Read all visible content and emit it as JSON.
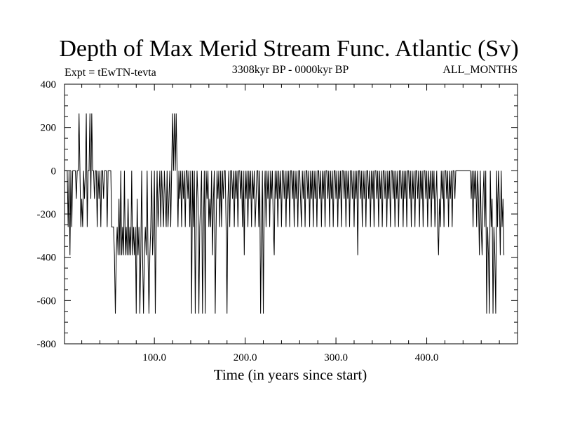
{
  "chart_data": {
    "type": "line",
    "title": "Depth of Max Merid Stream Func. Atlantic (Sv)",
    "subtitle_left": "Expt = tEwTN-tevta",
    "subtitle_center": "3308kyr BP - 0000kyr BP",
    "subtitle_right": "ALL_MONTHS",
    "xlabel": "Time (in years since start)",
    "ylabel": "",
    "xlim": [
      1,
      500
    ],
    "ylim": [
      -800,
      400
    ],
    "x_ticks": [
      100,
      200,
      300,
      400
    ],
    "x_tick_labels": [
      "100.0",
      "200.0",
      "300.0",
      "400.0"
    ],
    "y_ticks": [
      400,
      200,
      0,
      -200,
      -400,
      -600,
      -800
    ],
    "y_tick_labels": [
      "400",
      "200",
      "0",
      "-200",
      "-400",
      "-600",
      "-800"
    ],
    "grid": false,
    "legend": "none",
    "series": [
      {
        "name": "depth",
        "x_start": 1,
        "x_step": 1,
        "values": [
          0,
          0,
          0,
          0,
          -260,
          0,
          -390,
          0,
          -260,
          0,
          0,
          0,
          0,
          -130,
          0,
          0,
          265,
          0,
          -260,
          -130,
          -260,
          0,
          -130,
          0,
          265,
          -260,
          0,
          0,
          265,
          -130,
          265,
          0,
          0,
          -130,
          0,
          0,
          -260,
          0,
          -130,
          0,
          -260,
          0,
          0,
          -130,
          0,
          0,
          0,
          -260,
          0,
          0,
          0,
          0,
          -260,
          -260,
          -260,
          -390,
          -660,
          -390,
          -260,
          -390,
          -130,
          -390,
          0,
          -390,
          -260,
          -390,
          0,
          -390,
          -260,
          -390,
          -130,
          -390,
          -260,
          -390,
          0,
          -390,
          -260,
          -390,
          -260,
          -660,
          -130,
          -390,
          -260,
          -660,
          -390,
          0,
          -390,
          -660,
          -390,
          -260,
          -390,
          0,
          -390,
          -660,
          -390,
          -260,
          0,
          -390,
          -260,
          0,
          -660,
          -260,
          0,
          -260,
          -130,
          0,
          -260,
          0,
          -130,
          -260,
          0,
          -130,
          -260,
          0,
          -260,
          -130,
          0,
          -260,
          0,
          265,
          0,
          265,
          0,
          265,
          0,
          -260,
          0,
          -130,
          0,
          -260,
          0,
          -130,
          0,
          -260,
          0,
          0,
          -130,
          0,
          -260,
          0,
          -660,
          0,
          -260,
          0,
          -660,
          -260,
          0,
          -130,
          -660,
          -260,
          -130,
          0,
          -660,
          -260,
          0,
          -660,
          0,
          -130,
          0,
          -260,
          -130,
          -260,
          0,
          -390,
          -130,
          0,
          -660,
          -260,
          0,
          -130,
          0,
          -260,
          0,
          -260,
          0,
          -130,
          0,
          0,
          -260,
          -660,
          -130,
          0,
          -260,
          0,
          0,
          -130,
          0,
          -260,
          0,
          -130,
          0,
          -260,
          0,
          0,
          -130,
          0,
          -260,
          0,
          -390,
          0,
          -130,
          0,
          -260,
          0,
          -130,
          0,
          -260,
          0,
          -130,
          0,
          -260,
          -130,
          0,
          0,
          -260,
          0,
          -660,
          -260,
          0,
          -660,
          -130,
          0,
          -260,
          0,
          -130,
          0,
          -260,
          0,
          -130,
          0,
          -260,
          -390,
          0,
          -130,
          0,
          -260,
          0,
          -130,
          0,
          -260,
          0,
          0,
          -130,
          0,
          -260,
          0,
          -130,
          0,
          -260,
          0,
          0,
          -130,
          0,
          -260,
          0,
          -130,
          0,
          -260,
          0,
          0,
          -130,
          -260,
          0,
          -130,
          0,
          -260,
          0,
          0,
          -130,
          0,
          -260,
          0,
          -130,
          0,
          -260,
          0,
          -130,
          0,
          -260,
          0,
          0,
          -130,
          0,
          -260,
          0,
          -130,
          0,
          -260,
          0,
          0,
          -130,
          0,
          -260,
          0,
          -130,
          0,
          -260,
          0,
          0,
          -130,
          0,
          -260,
          0,
          -130,
          0,
          -260,
          0,
          0,
          -130,
          0,
          -260,
          0,
          -130,
          0,
          -260,
          0,
          0,
          -130,
          0,
          -260,
          0,
          -130,
          0,
          -390,
          0,
          0,
          -130,
          0,
          -260,
          0,
          -130,
          0,
          -260,
          0,
          0,
          -130,
          0,
          -260,
          0,
          -130,
          0,
          -260,
          0,
          0,
          -130,
          0,
          -260,
          0,
          -130,
          0,
          -260,
          0,
          0,
          -130,
          0,
          -260,
          0,
          -130,
          0,
          -260,
          0,
          0,
          -130,
          0,
          -260,
          0,
          -130,
          0,
          -260,
          0,
          0,
          -130,
          0,
          -260,
          0,
          -130,
          0,
          -260,
          0,
          0,
          -130,
          0,
          -260,
          0,
          -130,
          0,
          -260,
          0,
          0,
          -130,
          0,
          -260,
          0,
          -130,
          0,
          -260,
          0,
          0,
          -130,
          0,
          -260,
          0,
          -130,
          0,
          -260,
          0,
          -130,
          0,
          -260,
          -130,
          0,
          -260,
          -390,
          -130,
          -260,
          0,
          -130,
          0,
          -260,
          0,
          0,
          -130,
          0,
          -260,
          0,
          -130,
          0,
          -260,
          0,
          0,
          -130,
          0,
          0,
          0,
          0,
          0,
          0,
          0,
          0,
          0,
          0,
          0,
          0,
          0,
          0,
          0,
          0,
          0,
          -130,
          0,
          -260,
          0,
          -130,
          0,
          -260,
          0,
          -130,
          -390,
          0,
          -260,
          -390,
          -130,
          0,
          -260,
          0,
          -660,
          -260,
          -390,
          -660,
          0,
          -260,
          -130,
          -660,
          -260,
          -390,
          -660,
          0,
          -260,
          0,
          -130,
          -390,
          0,
          -260,
          -130,
          -390
        ]
      }
    ]
  }
}
